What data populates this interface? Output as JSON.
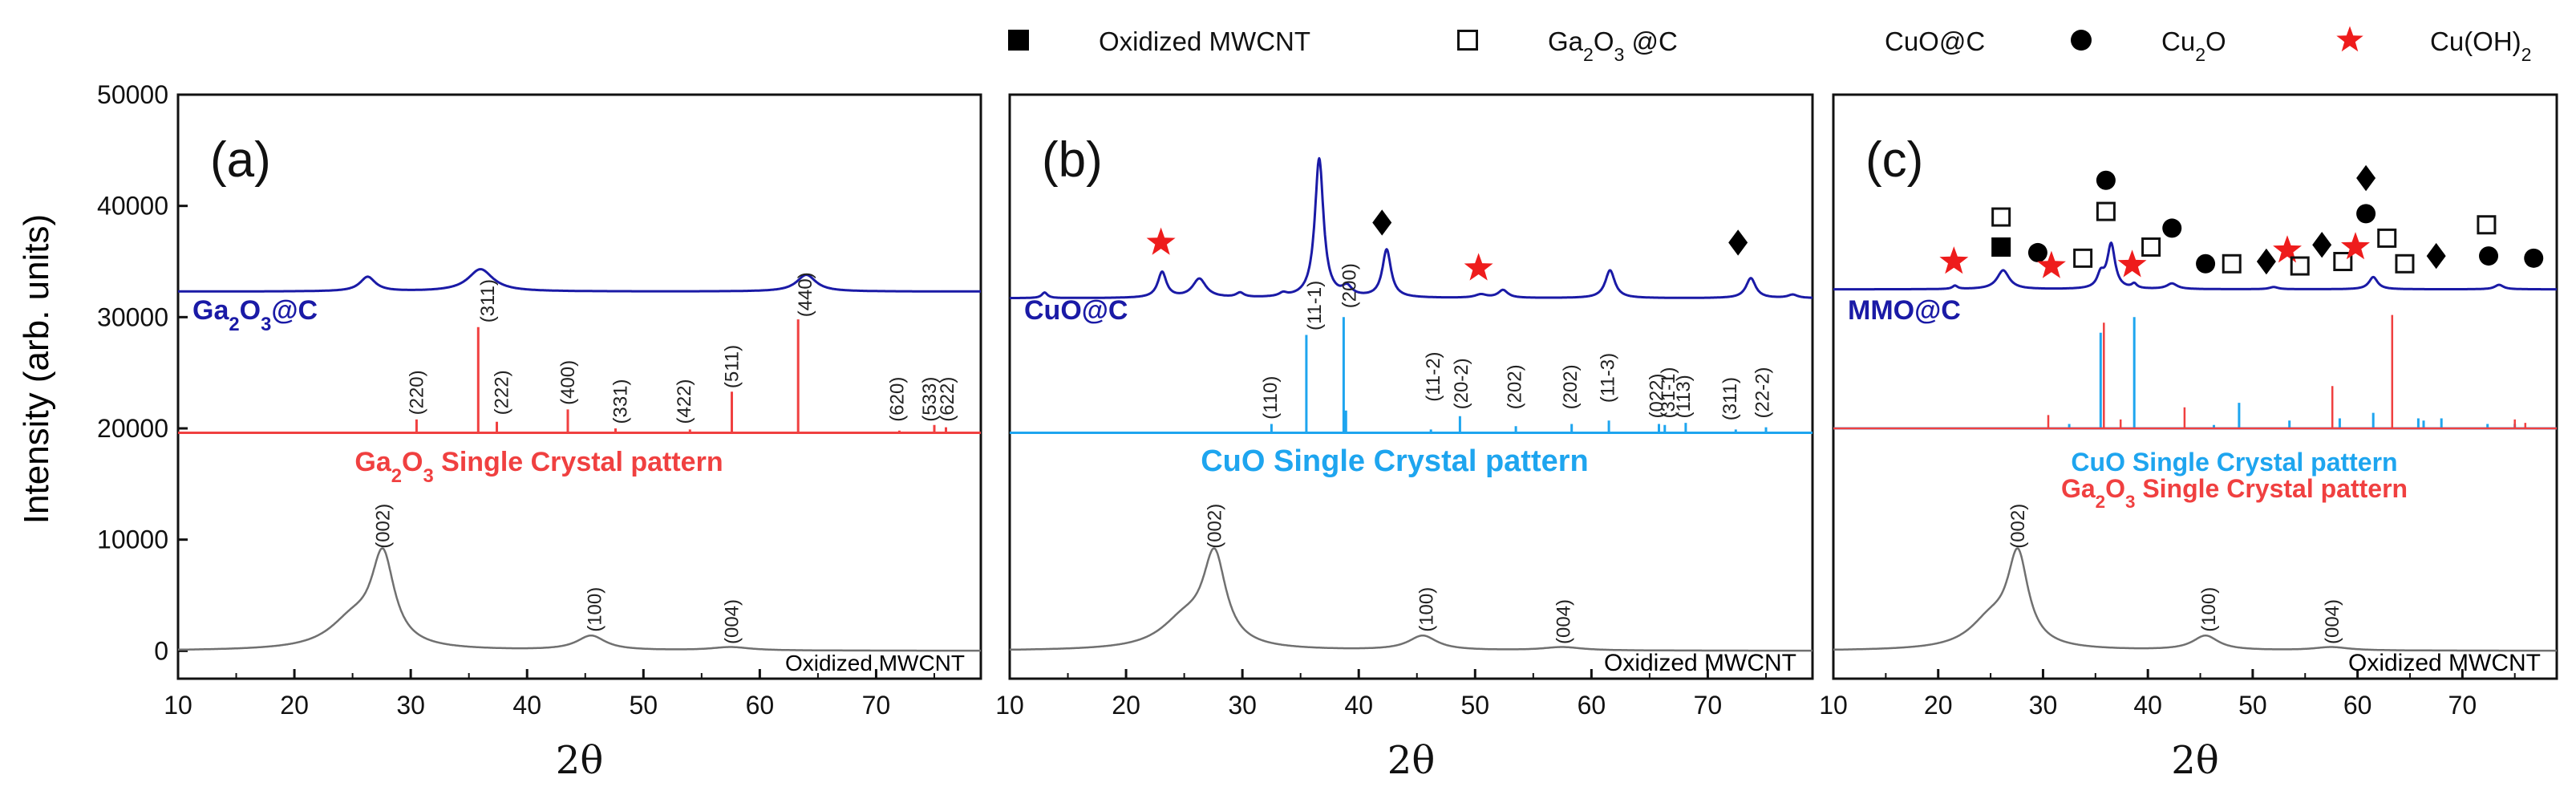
{
  "y_axis_label": "Intensity (arb. units)",
  "x_axis_label": "2θ",
  "legend": [
    {
      "symbol": "filled-square",
      "label": "Oxidized MWCNT"
    },
    {
      "symbol": "open-square",
      "label": "Ga2O3 @C",
      "main": "Ga",
      "sub1": "2",
      "mid": "O",
      "sub2": "3",
      "tail": " @C"
    },
    {
      "symbol": "filled-diamond",
      "label": "CuO@C"
    },
    {
      "symbol": "filled-circle",
      "label": "Cu2O",
      "main": "Cu",
      "sub1": "2",
      "mid": "O"
    },
    {
      "symbol": "red-star",
      "label": "Cu(OH)2",
      "main": "Cu(OH)",
      "sub1": "2"
    }
  ],
  "chart_data": [
    {
      "panel": "(a)",
      "type": "line",
      "xlim": [
        10,
        79
      ],
      "ylim": [
        -2500,
        50000
      ],
      "xticks": [
        10,
        20,
        30,
        40,
        50,
        60,
        70
      ],
      "yticks": [
        0,
        10000,
        20000,
        30000,
        40000,
        50000
      ],
      "ytick_labels": [
        "0",
        "10000",
        "20000",
        "30000",
        "40000",
        "50000"
      ],
      "xlabel": "2θ",
      "ylabel": "Intensity (arb. units)",
      "series": [
        {
          "name": "Ga2O3@C",
          "color": "#1a1aa6",
          "baseline": 32300,
          "width": 3,
          "peaks": [
            [
              26.3,
              1300,
              0.8
            ],
            [
              36,
              2000,
              1.3
            ],
            [
              64,
              1500,
              1
            ]
          ]
        },
        {
          "name": "Ga2O3 Single Crystal pattern",
          "color": "#f04040",
          "baseline": 19600,
          "width": 3,
          "stick": true,
          "peaks": [
            [
              30.5,
              1200
            ],
            [
              35.8,
              9500
            ],
            [
              37.4,
              1000
            ],
            [
              43.5,
              2100
            ],
            [
              47.6,
              400
            ],
            [
              54,
              300
            ],
            [
              57.6,
              3700
            ],
            [
              63.3,
              10200
            ],
            [
              72,
              200
            ],
            [
              75,
              700
            ],
            [
              76,
              500
            ]
          ]
        },
        {
          "name": "Oxidized MWCNT",
          "color": "#707070",
          "baseline": 0,
          "width": 2.5,
          "peaks": [
            [
              27.6,
              8000,
              1.2
            ],
            [
              25,
              2500,
              2.5
            ],
            [
              45.5,
              1300,
              1.5
            ],
            [
              57.5,
              300,
              2
            ]
          ]
        }
      ],
      "series_labels": [
        {
          "text": "Ga2O3@C",
          "main": "Ga",
          "sub1": "2",
          "mid": "O",
          "sub2": "3",
          "tail": "@C",
          "color": "#1a1aa6"
        },
        {
          "text": "Ga2O3 Single Crystal pattern",
          "main": "Ga",
          "sub1": "2",
          "mid": "O",
          "sub2": "3",
          "tail": " Single Crystal pattern",
          "color": "#f04040"
        },
        {
          "text": "Oxidized MWCNT",
          "color": "#000000"
        }
      ],
      "peak_labels": [
        {
          "text": "(220)",
          "x": 30.5,
          "y": 21200
        },
        {
          "text": "(311)",
          "x": 36.6,
          "y": 29500
        },
        {
          "text": "(222)",
          "x": 37.8,
          "y": 21200
        },
        {
          "text": "(400)",
          "x": 43.5,
          "y": 22100
        },
        {
          "text": "(331)",
          "x": 48,
          "y": 20400
        },
        {
          "text": "(422)",
          "x": 53.5,
          "y": 20400
        },
        {
          "text": "(511)",
          "x": 57.6,
          "y": 23600
        },
        {
          "text": "(440)",
          "x": 63.9,
          "y": 30000
        },
        {
          "text": "(620)",
          "x": 71.8,
          "y": 20600
        },
        {
          "text": "(533)",
          "x": 74.6,
          "y": 20600
        },
        {
          "text": "(622)",
          "x": 76.1,
          "y": 20600
        },
        {
          "text": "(002)",
          "x": 27.6,
          "y": 9200
        },
        {
          "text": "(100)",
          "x": 45.8,
          "y": 1700
        },
        {
          "text": "(004)",
          "x": 57.6,
          "y": 600
        }
      ],
      "markers": []
    },
    {
      "panel": "(b)",
      "type": "line",
      "xlim": [
        10,
        79
      ],
      "ylim": [
        -2500,
        50000
      ],
      "xticks": [
        10,
        20,
        30,
        40,
        50,
        60,
        70
      ],
      "xlabel": "2θ",
      "series": [
        {
          "name": "CuO@C",
          "color": "#1a1aa6",
          "baseline": 31700,
          "width": 3,
          "peaks": [
            [
              13,
              500,
              0.3
            ],
            [
              23.1,
              2300,
              0.45
            ],
            [
              26.3,
              1700,
              0.7
            ],
            [
              29.8,
              400,
              0.4
            ],
            [
              33.5,
              300,
              0.4
            ],
            [
              36.6,
              12500,
              0.45
            ],
            [
              39,
              800,
              0.5
            ],
            [
              42.4,
              4300,
              0.45
            ],
            [
              50.5,
              300,
              0.6
            ],
            [
              52.4,
              700,
              0.5
            ],
            [
              61.6,
              2500,
              0.5
            ],
            [
              73.7,
              1800,
              0.5
            ],
            [
              77.3,
              300,
              0.5
            ]
          ]
        },
        {
          "name": "CuO Single Crystal pattern",
          "color": "#1ea5ef",
          "baseline": 19600,
          "width": 3,
          "stick": true,
          "peaks": [
            [
              32.5,
              800
            ],
            [
              35.5,
              8800
            ],
            [
              38.7,
              10400
            ],
            [
              38.9,
              2000
            ],
            [
              46.2,
              300
            ],
            [
              48.7,
              1500
            ],
            [
              53.5,
              600
            ],
            [
              58.3,
              800
            ],
            [
              61.5,
              1100
            ],
            [
              65.8,
              800
            ],
            [
              66.3,
              700
            ],
            [
              68.1,
              900
            ],
            [
              72.4,
              300
            ],
            [
              75,
              500
            ]
          ]
        },
        {
          "name": "Oxidized MWCNT",
          "color": "#707070",
          "baseline": 0,
          "width": 2.5,
          "peaks": [
            [
              27.6,
              8000,
              1.2
            ],
            [
              25,
              2500,
              2.5
            ],
            [
              45.5,
              1300,
              1.5
            ],
            [
              57.5,
              300,
              2
            ]
          ]
        }
      ],
      "series_labels": [
        {
          "text": "CuO@C",
          "color": "#1a1aa6"
        },
        {
          "text": "CuO Single Crystal pattern",
          "color": "#1ea5ef"
        },
        {
          "text": "Oxidized MWCNT",
          "color": "#000000"
        }
      ],
      "peak_labels": [
        {
          "text": "(110)",
          "x": 32.4,
          "y": 20800
        },
        {
          "text": "(11-1)",
          "x": 36.2,
          "y": 28800
        },
        {
          "text": "(200)",
          "x": 39.2,
          "y": 30800
        },
        {
          "text": "(11-2)",
          "x": 46.4,
          "y": 22400
        },
        {
          "text": "(20-2)",
          "x": 48.8,
          "y": 21700
        },
        {
          "text": "(202)",
          "x": 53.4,
          "y": 21700
        },
        {
          "text": "(202)",
          "x": 58.2,
          "y": 21700
        },
        {
          "text": "(11-3)",
          "x": 61.4,
          "y": 22300
        },
        {
          "text": "(022)",
          "x": 65.6,
          "y": 20900
        },
        {
          "text": "(31-1)",
          "x": 66.6,
          "y": 20900
        },
        {
          "text": "(113)",
          "x": 67.9,
          "y": 20900
        },
        {
          "text": "(311)",
          "x": 71.9,
          "y": 20700
        },
        {
          "text": "(22-2)",
          "x": 74.7,
          "y": 20900
        },
        {
          "text": "(002)",
          "x": 27.6,
          "y": 9200
        },
        {
          "text": "(100)",
          "x": 45.8,
          "y": 1700
        },
        {
          "text": "(004)",
          "x": 57.6,
          "y": 600
        }
      ],
      "markers": [
        {
          "shape": "star",
          "x": 23,
          "y": 36700
        },
        {
          "shape": "diamond",
          "x": 42,
          "y": 38500
        },
        {
          "shape": "star",
          "x": 50.3,
          "y": 34400
        },
        {
          "shape": "diamond",
          "x": 72.6,
          "y": 36700
        }
      ]
    },
    {
      "panel": "(c)",
      "type": "line",
      "xlim": [
        10,
        79
      ],
      "ylim": [
        -2500,
        50000
      ],
      "xticks": [
        10,
        20,
        30,
        40,
        50,
        60,
        70
      ],
      "xlabel": "2θ",
      "series": [
        {
          "name": "MMO@C",
          "color": "#1a1aa6",
          "baseline": 32500,
          "width": 3,
          "peaks": [
            [
              21.6,
              300,
              0.3
            ],
            [
              26.2,
              1700,
              0.7
            ],
            [
              35.5,
              1200,
              0.4
            ],
            [
              36.5,
              4000,
              0.45
            ],
            [
              38.7,
              400,
              0.3
            ],
            [
              42.3,
              500,
              0.6
            ],
            [
              52,
              200,
              0.5
            ],
            [
              61.5,
              1100,
              0.5
            ],
            [
              73.5,
              400,
              0.5
            ]
          ]
        },
        {
          "name": "CuO Single Crystal pattern",
          "color": "#1ea5ef",
          "baseline": 20000,
          "width": 3,
          "stick": true,
          "peaks": [
            [
              32.5,
              400
            ],
            [
              35.5,
              8600
            ],
            [
              38.7,
              10000
            ],
            [
              46.3,
              300
            ],
            [
              48.7,
              2300
            ],
            [
              53.5,
              700
            ],
            [
              58.3,
              900
            ],
            [
              61.5,
              1400
            ],
            [
              65.8,
              900
            ],
            [
              66.3,
              700
            ],
            [
              68,
              900
            ],
            [
              72.4,
              400
            ],
            [
              75,
              400
            ]
          ]
        },
        {
          "name": "Ga2O3 Single Crystal pattern",
          "color": "#f04040",
          "baseline": 20000,
          "width": 2.5,
          "stick": true,
          "peaks": [
            [
              30.5,
              1200
            ],
            [
              35.8,
              9500
            ],
            [
              37.4,
              800
            ],
            [
              43.5,
              1900
            ],
            [
              57.6,
              3800
            ],
            [
              63.3,
              10200
            ],
            [
              75,
              800
            ],
            [
              76,
              500
            ]
          ]
        },
        {
          "name": "Oxidized MWCNT",
          "color": "#707070",
          "baseline": 0,
          "width": 2.5,
          "peaks": [
            [
              27.6,
              8000,
              1.2
            ],
            [
              25,
              2500,
              2.5
            ],
            [
              45.5,
              1300,
              1.5
            ],
            [
              57.5,
              300,
              2
            ]
          ]
        }
      ],
      "series_labels": [
        {
          "text": "MMO@C",
          "color": "#1a1aa6"
        },
        {
          "text": "CuO Single Crystal pattern",
          "color": "#1ea5ef"
        },
        {
          "text": "Ga2O3 Single Crystal pattern",
          "main": "Ga",
          "sub1": "2",
          "mid": "O",
          "sub2": "3",
          "tail": " Single Crystal pattern",
          "color": "#f04040"
        },
        {
          "text": "Oxidized MWCNT",
          "color": "#000000"
        }
      ],
      "peak_labels": [
        {
          "text": "(002)",
          "x": 27.6,
          "y": 9200
        },
        {
          "text": "(100)",
          "x": 45.8,
          "y": 1700
        },
        {
          "text": "(004)",
          "x": 57.6,
          "y": 600
        }
      ],
      "markers": [
        {
          "shape": "star",
          "x": 21.5,
          "y": 35000
        },
        {
          "shape": "filled-square",
          "x": 26,
          "y": 36300
        },
        {
          "shape": "open-square",
          "x": 26,
          "y": 39000
        },
        {
          "shape": "circle",
          "x": 29.5,
          "y": 35800
        },
        {
          "shape": "star",
          "x": 30.8,
          "y": 34600
        },
        {
          "shape": "open-square",
          "x": 33.8,
          "y": 35300
        },
        {
          "shape": "circle",
          "x": 36,
          "y": 42300
        },
        {
          "shape": "open-square",
          "x": 36,
          "y": 39500
        },
        {
          "shape": "star",
          "x": 38.5,
          "y": 34700
        },
        {
          "shape": "open-square",
          "x": 40.3,
          "y": 36300
        },
        {
          "shape": "circle",
          "x": 42.3,
          "y": 38000
        },
        {
          "shape": "circle",
          "x": 45.5,
          "y": 34800
        },
        {
          "shape": "open-square",
          "x": 48,
          "y": 34800
        },
        {
          "shape": "diamond",
          "x": 51.3,
          "y": 35000
        },
        {
          "shape": "star",
          "x": 53.3,
          "y": 36000
        },
        {
          "shape": "open-square",
          "x": 54.5,
          "y": 34600
        },
        {
          "shape": "diamond",
          "x": 56.6,
          "y": 36500
        },
        {
          "shape": "open-square",
          "x": 58.6,
          "y": 35000
        },
        {
          "shape": "star",
          "x": 59.8,
          "y": 36300
        },
        {
          "shape": "diamond",
          "x": 60.8,
          "y": 42500
        },
        {
          "shape": "circle",
          "x": 60.8,
          "y": 39300
        },
        {
          "shape": "open-square",
          "x": 62.8,
          "y": 37100
        },
        {
          "shape": "open-square",
          "x": 64.5,
          "y": 34800
        },
        {
          "shape": "diamond",
          "x": 67.5,
          "y": 35500
        },
        {
          "shape": "open-square",
          "x": 72.3,
          "y": 38300
        },
        {
          "shape": "circle",
          "x": 72.5,
          "y": 35500
        },
        {
          "shape": "circle",
          "x": 76.8,
          "y": 35300
        }
      ]
    }
  ]
}
